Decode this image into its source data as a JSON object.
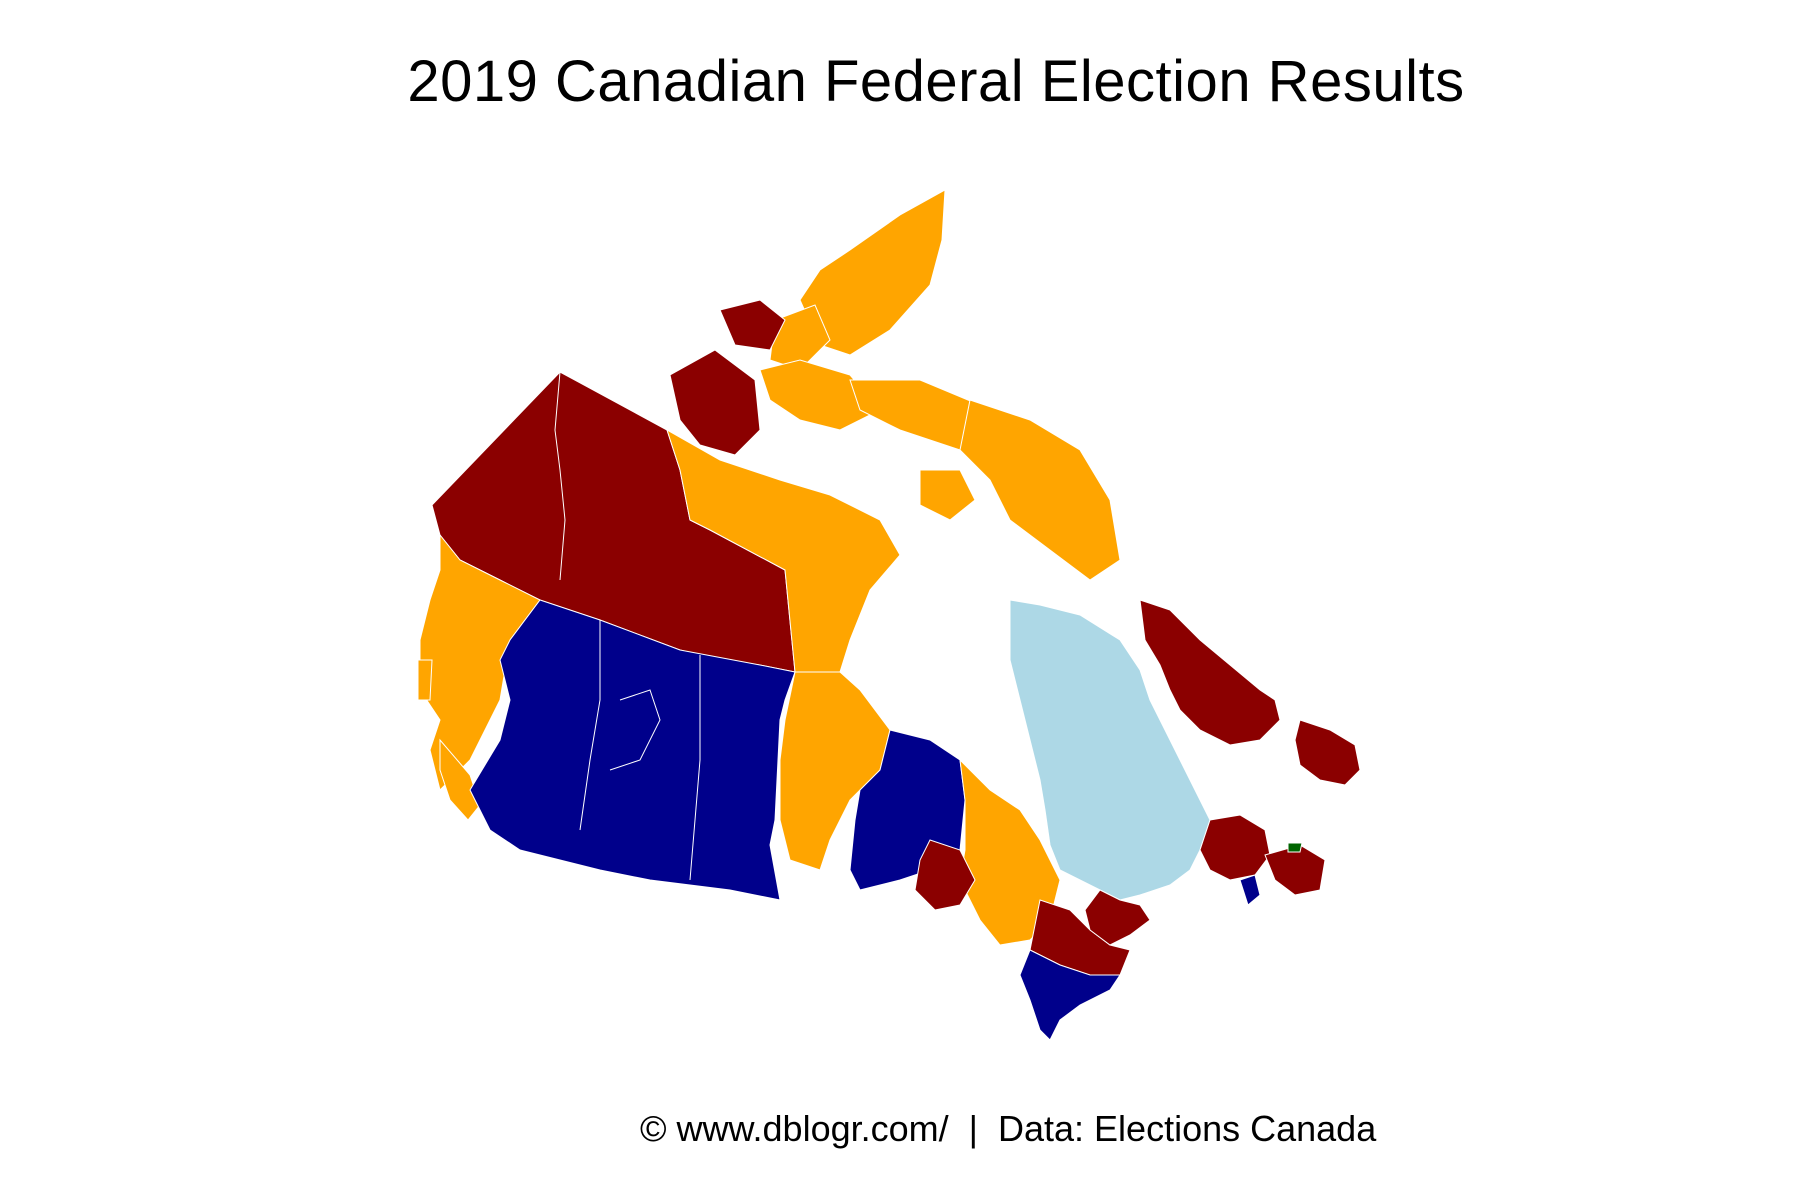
{
  "map": {
    "title": "2019 Canadian Federal Election Results",
    "credit": "© www.dblogr.com/  |  Data: Elections Canada",
    "party_colors": {
      "liberal": "#8b0000",
      "conservative": "#00008b",
      "ndp": "#ffa500",
      "bloc": "#add8e6",
      "green": "#006400",
      "water": "#ffffff",
      "border": "#ffffff"
    }
  }
}
